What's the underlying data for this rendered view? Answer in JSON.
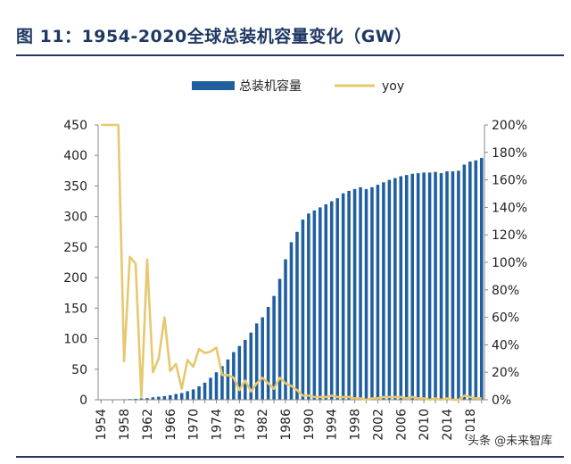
{
  "title": "图  11：1954-2020全球总装机容量变化（GW）",
  "watermark": "头条 @未来智库",
  "chart_data": {
    "type": "bar+line",
    "title": "图  11：1954-2020全球总装机容量变化（GW）",
    "legend": [
      {
        "name": "总装机容量",
        "color": "#1f5fa0",
        "kind": "bar"
      },
      {
        "name": "yoy",
        "color": "#e6c86e",
        "kind": "line"
      }
    ],
    "legend_placement": "top",
    "grid": false,
    "x_tick_labels": [
      "1954",
      "1958",
      "1962",
      "1966",
      "1970",
      "1974",
      "1978",
      "1982",
      "1986",
      "1990",
      "1994",
      "1998",
      "2002",
      "2006",
      "2010",
      "2014",
      "2018"
    ],
    "y_left": {
      "lim": [
        0,
        450
      ],
      "ticks": [
        0,
        50,
        100,
        150,
        200,
        250,
        300,
        350,
        400,
        450
      ]
    },
    "y_right": {
      "lim": [
        0,
        2.0
      ],
      "ticks": [
        "0%",
        "20%",
        "40%",
        "60%",
        "80%",
        "100%",
        "120%",
        "140%",
        "160%",
        "180%",
        "200%"
      ]
    },
    "series": [
      {
        "name": "总装机容量",
        "type": "bar",
        "x": [
          1954,
          1955,
          1956,
          1957,
          1958,
          1959,
          1960,
          1961,
          1962,
          1963,
          1964,
          1965,
          1966,
          1967,
          1968,
          1969,
          1970,
          1971,
          1972,
          1973,
          1974,
          1975,
          1976,
          1977,
          1978,
          1979,
          1980,
          1981,
          1982,
          1983,
          1984,
          1985,
          1986,
          1987,
          1988,
          1989,
          1990,
          1991,
          1992,
          1993,
          1994,
          1995,
          1996,
          1997,
          1998,
          1999,
          2000,
          2001,
          2002,
          2003,
          2004,
          2005,
          2006,
          2007,
          2008,
          2009,
          2010,
          2011,
          2012,
          2013,
          2014,
          2015,
          2016,
          2017,
          2018,
          2019,
          2020
        ],
        "values": [
          0.005,
          0.1,
          0.2,
          0.5,
          0.8,
          1.2,
          1.5,
          2.2,
          2.6,
          4,
          5,
          6,
          7.5,
          9.5,
          11,
          14,
          17,
          22,
          28,
          36,
          45,
          55,
          66,
          78,
          88,
          98,
          110,
          125,
          135,
          152,
          170,
          198,
          230,
          258,
          275,
          295,
          305,
          310,
          315,
          320,
          325,
          330,
          338,
          342,
          345,
          348,
          345,
          348,
          352,
          356,
          360,
          363,
          366,
          368,
          370,
          371,
          372,
          372,
          373,
          371,
          374,
          374,
          375,
          385,
          390,
          392,
          396
        ]
      },
      {
        "name": "yoy",
        "type": "line",
        "x": [
          1954,
          1955,
          1956,
          1957,
          1958,
          1959,
          1960,
          1961,
          1962,
          1963,
          1964,
          1965,
          1966,
          1967,
          1968,
          1969,
          1970,
          1971,
          1972,
          1973,
          1974,
          1975,
          1976,
          1977,
          1978,
          1979,
          1980,
          1981,
          1982,
          1983,
          1984,
          1985,
          1986,
          1987,
          1988,
          1989,
          1990,
          1991,
          1992,
          1993,
          1994,
          1995,
          1996,
          1997,
          1998,
          1999,
          2000,
          2001,
          2002,
          2003,
          2004,
          2005,
          2006,
          2007,
          2008,
          2009,
          2010,
          2011,
          2012,
          2013,
          2014,
          2015,
          2016,
          2017,
          2018,
          2019,
          2020
        ],
        "values": [
          2.0,
          2.0,
          2.0,
          2.0,
          0.28,
          1.04,
          0.99,
          0.02,
          1.02,
          0.2,
          0.3,
          0.6,
          0.21,
          0.26,
          0.08,
          0.29,
          0.24,
          0.37,
          0.34,
          0.35,
          0.38,
          0.18,
          0.18,
          0.16,
          0.07,
          0.14,
          0.06,
          0.12,
          0.16,
          0.12,
          0.08,
          0.16,
          0.12,
          0.1,
          0.07,
          0.03,
          0.03,
          0.02,
          0.02,
          0.02,
          0.03,
          0.02,
          0.02,
          0.02,
          0.01,
          0.01,
          0.0,
          0.01,
          0.01,
          0.02,
          0.02,
          0.02,
          0.02,
          0.01,
          0.02,
          0.01,
          0.01,
          0.0,
          0.01,
          0.0,
          0.01,
          0.0,
          0.0,
          0.03,
          0.02,
          0.01,
          0.01
        ]
      }
    ]
  }
}
